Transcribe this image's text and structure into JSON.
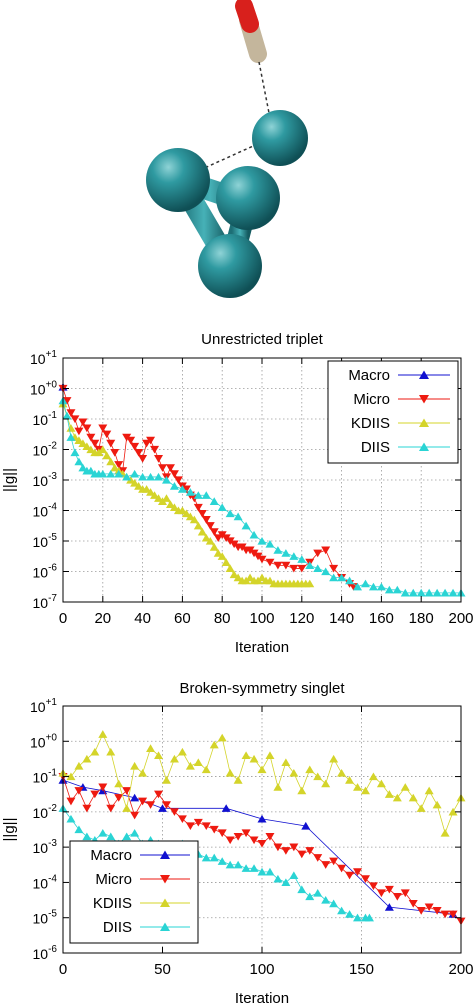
{
  "molecule": {
    "atom_color": "#2a8a91",
    "oxygen_color": "#d8201c",
    "carbon_color": "#b5a48a"
  },
  "chart_data": [
    {
      "type": "scatter",
      "title": "Unrestricted triplet",
      "xlabel": "Iteration",
      "ylabel": "||g||",
      "xlim": [
        0,
        200
      ],
      "ylim_log10": [
        -7,
        1
      ],
      "log_y": true,
      "grid": true,
      "legend_position": "top-right",
      "xticks": [
        "0",
        "20",
        "40",
        "60",
        "80",
        "100",
        "120",
        "140",
        "160",
        "180",
        "200"
      ],
      "xtick_values": [
        0,
        20,
        40,
        60,
        80,
        100,
        120,
        140,
        160,
        180,
        200
      ],
      "yticks": [
        {
          "base": "10",
          "exp": "+1",
          "value": 1
        },
        {
          "base": "10",
          "exp": "+0",
          "value": 0
        },
        {
          "base": "10",
          "exp": "-1",
          "value": -1
        },
        {
          "base": "10",
          "exp": "-2",
          "value": -2
        },
        {
          "base": "10",
          "exp": "-3",
          "value": -3
        },
        {
          "base": "10",
          "exp": "-4",
          "value": -4
        },
        {
          "base": "10",
          "exp": "-5",
          "value": -5
        },
        {
          "base": "10",
          "exp": "-6",
          "value": -6
        },
        {
          "base": "10",
          "exp": "-7",
          "value": -7
        }
      ],
      "series": [
        {
          "name": "Macro",
          "color": "#1010d0",
          "marker": "up",
          "x": [
            0
          ],
          "y_log10": [
            0.05
          ]
        },
        {
          "name": "Micro",
          "color": "#ee1a10",
          "marker": "down",
          "x": [
            0,
            2,
            4,
            6,
            8,
            10,
            12,
            14,
            16,
            18,
            20,
            22,
            24,
            26,
            28,
            30,
            32,
            34,
            36,
            38,
            40,
            42,
            44,
            46,
            48,
            50,
            52,
            54,
            56,
            58,
            60,
            62,
            64,
            66,
            68,
            70,
            72,
            74,
            76,
            78,
            80,
            82,
            84,
            86,
            88,
            90,
            92,
            94,
            96,
            98,
            100,
            104,
            108,
            112,
            116,
            120,
            124,
            128,
            132,
            136,
            140,
            144,
            146
          ],
          "y_log10": [
            0.0,
            -0.4,
            -0.8,
            -1.0,
            -1.4,
            -1.1,
            -1.3,
            -1.6,
            -1.8,
            -2.0,
            -1.3,
            -1.5,
            -1.8,
            -2.1,
            -2.5,
            -2.7,
            -1.6,
            -1.7,
            -1.9,
            -2.1,
            -2.3,
            -1.8,
            -1.7,
            -2.0,
            -2.3,
            -2.6,
            -2.9,
            -2.6,
            -2.8,
            -3.0,
            -3.2,
            -3.3,
            -3.5,
            -3.6,
            -3.9,
            -4.1,
            -4.3,
            -4.5,
            -4.7,
            -4.9,
            -4.8,
            -4.9,
            -5.0,
            -5.1,
            -5.2,
            -5.2,
            -5.3,
            -5.3,
            -5.4,
            -5.5,
            -5.6,
            -5.7,
            -5.8,
            -5.8,
            -5.9,
            -5.9,
            -5.7,
            -5.4,
            -5.3,
            -5.9,
            -6.2,
            -6.4,
            -6.5
          ]
        },
        {
          "name": "KDIIS",
          "color": "#d4d42a",
          "marker": "up",
          "x": [
            0,
            2,
            4,
            6,
            8,
            10,
            12,
            14,
            16,
            18,
            20,
            22,
            24,
            26,
            28,
            30,
            32,
            34,
            36,
            38,
            40,
            42,
            44,
            46,
            48,
            50,
            52,
            54,
            56,
            58,
            60,
            62,
            64,
            66,
            68,
            70,
            72,
            74,
            76,
            78,
            80,
            82,
            84,
            86,
            88,
            90,
            92,
            94,
            96,
            98,
            100,
            102,
            104,
            106,
            108,
            110,
            112,
            114,
            116,
            118,
            120,
            122,
            124
          ],
          "y_log10": [
            -0.5,
            -0.9,
            -1.3,
            -1.6,
            -1.7,
            -1.8,
            -1.9,
            -2.0,
            -2.1,
            -2.1,
            -2.0,
            -2.2,
            -2.4,
            -2.6,
            -2.7,
            -2.8,
            -2.9,
            -3.0,
            -3.1,
            -3.2,
            -3.3,
            -3.3,
            -3.4,
            -3.5,
            -3.6,
            -3.7,
            -3.6,
            -3.8,
            -3.9,
            -4.0,
            -4.0,
            -4.1,
            -4.2,
            -4.3,
            -4.5,
            -4.7,
            -4.9,
            -5.0,
            -5.2,
            -5.4,
            -5.5,
            -5.7,
            -5.9,
            -6.1,
            -6.2,
            -6.3,
            -6.3,
            -6.2,
            -6.3,
            -6.3,
            -6.2,
            -6.3,
            -6.3,
            -6.4,
            -6.4,
            -6.4,
            -6.4,
            -6.4,
            -6.4,
            -6.4,
            -6.4,
            -6.4,
            -6.4
          ]
        },
        {
          "name": "DIIS",
          "color": "#2ad4d4",
          "marker": "up",
          "x": [
            0,
            2,
            4,
            6,
            8,
            10,
            12,
            14,
            16,
            18,
            20,
            24,
            28,
            32,
            36,
            40,
            44,
            48,
            52,
            56,
            60,
            64,
            68,
            72,
            76,
            80,
            84,
            88,
            92,
            96,
            100,
            104,
            108,
            112,
            116,
            120,
            124,
            128,
            132,
            136,
            140,
            144,
            148,
            152,
            156,
            160,
            164,
            168,
            172,
            176,
            180,
            184,
            188,
            192,
            196,
            200
          ],
          "y_log10": [
            -0.4,
            -0.9,
            -1.6,
            -2.1,
            -2.4,
            -2.6,
            -2.7,
            -2.7,
            -2.8,
            -2.8,
            -2.8,
            -2.8,
            -2.8,
            -2.9,
            -2.8,
            -2.9,
            -2.9,
            -2.9,
            -3.0,
            -3.2,
            -3.3,
            -3.4,
            -3.5,
            -3.5,
            -3.7,
            -3.9,
            -4.1,
            -4.2,
            -4.5,
            -4.8,
            -5.0,
            -5.1,
            -5.3,
            -5.4,
            -5.5,
            -5.6,
            -5.8,
            -5.9,
            -6.0,
            -6.2,
            -6.2,
            -6.3,
            -6.5,
            -6.4,
            -6.5,
            -6.5,
            -6.6,
            -6.6,
            -6.7,
            -6.7,
            -6.7,
            -6.7,
            -6.7,
            -6.7,
            -6.7,
            -6.7
          ]
        }
      ]
    },
    {
      "type": "scatter",
      "title": "Broken-symmetry singlet",
      "xlabel": "Iteration",
      "ylabel": "||g||",
      "xlim": [
        0,
        200
      ],
      "ylim_log10": [
        -6,
        1
      ],
      "log_y": true,
      "grid": true,
      "legend_position": "bottom-left",
      "xticks": [
        "0",
        "50",
        "100",
        "150",
        "200"
      ],
      "xtick_values": [
        0,
        50,
        100,
        150,
        200
      ],
      "yticks": [
        {
          "base": "10",
          "exp": "+1",
          "value": 1
        },
        {
          "base": "10",
          "exp": "+0",
          "value": 0
        },
        {
          "base": "10",
          "exp": "-1",
          "value": -1
        },
        {
          "base": "10",
          "exp": "-2",
          "value": -2
        },
        {
          "base": "10",
          "exp": "-3",
          "value": -3
        },
        {
          "base": "10",
          "exp": "-4",
          "value": -4
        },
        {
          "base": "10",
          "exp": "-5",
          "value": -5
        },
        {
          "base": "10",
          "exp": "-6",
          "value": -6
        }
      ],
      "series": [
        {
          "name": "Macro",
          "color": "#1010d0",
          "marker": "up",
          "x": [
            0,
            10,
            20,
            36,
            50,
            82,
            100,
            122,
            164,
            196
          ],
          "y_log10": [
            -1.1,
            -1.3,
            -1.4,
            -1.6,
            -1.9,
            -1.9,
            -2.2,
            -2.4,
            -4.7,
            -4.9
          ]
        },
        {
          "name": "Micro",
          "color": "#ee1a10",
          "marker": "down",
          "x": [
            0,
            4,
            8,
            12,
            16,
            20,
            24,
            28,
            32,
            36,
            40,
            44,
            48,
            52,
            56,
            60,
            64,
            68,
            72,
            76,
            80,
            84,
            88,
            92,
            96,
            100,
            104,
            108,
            112,
            116,
            120,
            124,
            128,
            132,
            136,
            140,
            144,
            148,
            152,
            156,
            160,
            164,
            168,
            172,
            176,
            180,
            184,
            188,
            192,
            196,
            200
          ],
          "y_log10": [
            -1.0,
            -1.7,
            -1.4,
            -1.9,
            -1.5,
            -1.3,
            -1.9,
            -1.6,
            -1.4,
            -2.1,
            -1.7,
            -1.8,
            -1.5,
            -1.8,
            -2.0,
            -2.2,
            -2.4,
            -2.3,
            -2.4,
            -2.5,
            -2.6,
            -2.8,
            -2.7,
            -2.6,
            -2.8,
            -2.9,
            -2.7,
            -3.0,
            -3.1,
            -3.0,
            -3.2,
            -3.1,
            -3.3,
            -3.5,
            -3.4,
            -3.6,
            -3.8,
            -3.7,
            -3.9,
            -4.1,
            -4.3,
            -4.2,
            -4.4,
            -4.3,
            -4.6,
            -4.8,
            -4.7,
            -4.8,
            -4.9,
            -4.9,
            -5.1
          ]
        },
        {
          "name": "KDIIS",
          "color": "#d4d42a",
          "marker": "up",
          "x": [
            0,
            4,
            8,
            12,
            16,
            20,
            24,
            28,
            32,
            36,
            40,
            44,
            48,
            52,
            56,
            60,
            64,
            68,
            72,
            76,
            80,
            84,
            88,
            92,
            96,
            100,
            104,
            108,
            112,
            116,
            120,
            124,
            128,
            132,
            136,
            140,
            144,
            148,
            152,
            156,
            160,
            164,
            168,
            172,
            176,
            180,
            184,
            188,
            192,
            196,
            200
          ],
          "y_log10": [
            -0.9,
            -1.0,
            -0.7,
            -0.5,
            -0.3,
            0.2,
            -0.3,
            -1.2,
            -1.9,
            -0.7,
            -0.9,
            -0.2,
            -0.4,
            -1.1,
            -0.5,
            -0.3,
            -0.7,
            -0.6,
            -0.8,
            -0.1,
            0.1,
            -0.9,
            -1.1,
            -0.4,
            -0.5,
            -0.8,
            -0.4,
            -1.3,
            -0.6,
            -0.9,
            -1.4,
            -0.8,
            -1.0,
            -1.2,
            -0.5,
            -0.9,
            -1.1,
            -1.3,
            -1.4,
            -1.0,
            -1.2,
            -1.5,
            -1.6,
            -1.3,
            -1.6,
            -1.9,
            -1.4,
            -1.8,
            -2.6,
            -2.0,
            -1.6
          ]
        },
        {
          "name": "DIIS",
          "color": "#2ad4d4",
          "marker": "up",
          "x": [
            0,
            4,
            8,
            12,
            16,
            20,
            24,
            28,
            32,
            36,
            40,
            44,
            48,
            52,
            56,
            60,
            64,
            68,
            72,
            76,
            80,
            84,
            88,
            92,
            96,
            100,
            104,
            108,
            112,
            116,
            120,
            124,
            128,
            132,
            136,
            140,
            144,
            148,
            152,
            154
          ],
          "y_log10": [
            -1.9,
            -2.2,
            -2.5,
            -2.7,
            -2.8,
            -2.6,
            -2.7,
            -2.9,
            -2.7,
            -2.6,
            -2.9,
            -2.8,
            -2.9,
            -3.0,
            -3.1,
            -2.9,
            -3.1,
            -3.2,
            -3.3,
            -3.3,
            -3.4,
            -3.5,
            -3.5,
            -3.6,
            -3.6,
            -3.7,
            -3.7,
            -3.9,
            -4.0,
            -3.8,
            -4.2,
            -4.4,
            -4.3,
            -4.5,
            -4.6,
            -4.8,
            -4.9,
            -5.0,
            -5.0,
            -5.0
          ]
        }
      ]
    }
  ]
}
